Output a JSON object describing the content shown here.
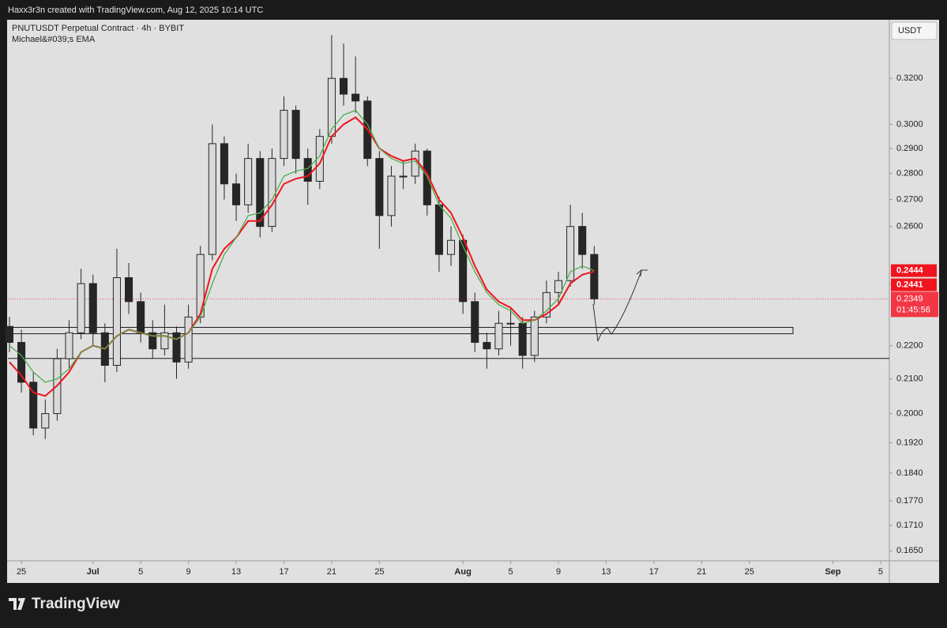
{
  "header": "Haxx3r3n created with TradingView.com, Aug 12, 2025 10:14 UTC",
  "brand": "TradingView",
  "chart_data": {
    "type": "candlestick",
    "title": "PNUTUSDT Perpetual Contract · 4h · BYBIT",
    "subtitle": "Michael&#039;s EMA",
    "y_axis_label": "USDT",
    "log_scale": true,
    "grid": false,
    "xlim": [
      23.87,
      97.73
    ],
    "xticks": [
      {
        "value": 25,
        "label": "25"
      },
      {
        "value": 31,
        "label": "Jul"
      },
      {
        "value": 35,
        "label": "5"
      },
      {
        "value": 39,
        "label": "9"
      },
      {
        "value": 43,
        "label": "13"
      },
      {
        "value": 47,
        "label": "17"
      },
      {
        "value": 51,
        "label": "21"
      },
      {
        "value": 55,
        "label": "25"
      },
      {
        "value": 62,
        "label": "Aug"
      },
      {
        "value": 66,
        "label": "5"
      },
      {
        "value": 70,
        "label": "9"
      },
      {
        "value": 74,
        "label": "13"
      },
      {
        "value": 78,
        "label": "17"
      },
      {
        "value": 82,
        "label": "21"
      },
      {
        "value": 86,
        "label": "25"
      },
      {
        "value": 93,
        "label": "Sep"
      },
      {
        "value": 97,
        "label": "5"
      }
    ],
    "ylim": [
      0.1627,
      0.3474
    ],
    "yticks": [
      {
        "value": 0.165,
        "label": "0.1650"
      },
      {
        "value": 0.171,
        "label": "0.1710"
      },
      {
        "value": 0.177,
        "label": "0.1770"
      },
      {
        "value": 0.184,
        "label": "0.1840"
      },
      {
        "value": 0.192,
        "label": "0.1920"
      },
      {
        "value": 0.2,
        "label": "0.2000"
      },
      {
        "value": 0.21,
        "label": "0.2100"
      },
      {
        "value": 0.22,
        "label": "0.2200"
      },
      {
        "value": 0.24,
        "label": "0.2400"
      },
      {
        "value": 0.26,
        "label": "0.2600"
      },
      {
        "value": 0.27,
        "label": "0.2700"
      },
      {
        "value": 0.28,
        "label": "0.2800"
      },
      {
        "value": 0.29,
        "label": "0.2900"
      },
      {
        "value": 0.3,
        "label": "0.3000"
      },
      {
        "value": 0.32,
        "label": "0.3200"
      }
    ],
    "up_color": "#d9d9d9",
    "down_color": "#262626",
    "x": [
      24,
      25,
      26,
      27,
      28,
      29,
      30,
      31,
      32,
      33,
      34,
      35,
      36,
      37,
      38,
      39,
      40,
      41,
      42,
      43,
      44,
      45,
      46,
      47,
      48,
      49,
      50,
      51,
      52,
      53,
      54,
      55,
      56,
      57,
      58,
      59,
      60,
      61,
      62,
      63,
      64,
      65,
      66,
      67,
      68,
      69,
      70,
      71,
      72,
      73
    ],
    "open": [
      0.226,
      0.221,
      0.209,
      0.196,
      0.2,
      0.216,
      0.224,
      0.24,
      0.224,
      0.214,
      0.242,
      0.234,
      0.224,
      0.219,
      0.224,
      0.215,
      0.229,
      0.25,
      0.292,
      0.276,
      0.268,
      0.286,
      0.26,
      0.286,
      0.306,
      0.286,
      0.277,
      0.295,
      0.32,
      0.313,
      0.31,
      0.286,
      0.264,
      0.279,
      0.279,
      0.289,
      0.268,
      0.25,
      0.255,
      0.234,
      0.221,
      0.219,
      0.227,
      0.227,
      0.217,
      0.229,
      0.237,
      0.241,
      0.26,
      0.25
    ],
    "high": [
      0.229,
      0.225,
      0.212,
      0.204,
      0.219,
      0.228,
      0.245,
      0.243,
      0.227,
      0.252,
      0.247,
      0.237,
      0.228,
      0.233,
      0.226,
      0.233,
      0.253,
      0.3,
      0.295,
      0.28,
      0.292,
      0.289,
      0.29,
      0.312,
      0.308,
      0.29,
      0.298,
      0.34,
      0.336,
      0.33,
      0.312,
      0.289,
      0.283,
      0.285,
      0.292,
      0.29,
      0.271,
      0.26,
      0.257,
      0.237,
      0.224,
      0.231,
      0.232,
      0.229,
      0.231,
      0.241,
      0.244,
      0.268,
      0.265,
      0.253
    ],
    "low": [
      0.218,
      0.206,
      0.194,
      0.193,
      0.198,
      0.213,
      0.222,
      0.22,
      0.209,
      0.212,
      0.23,
      0.221,
      0.216,
      0.217,
      0.21,
      0.213,
      0.227,
      0.248,
      0.27,
      0.262,
      0.265,
      0.256,
      0.258,
      0.283,
      0.28,
      0.268,
      0.274,
      0.292,
      0.308,
      0.305,
      0.283,
      0.252,
      0.26,
      0.274,
      0.276,
      0.264,
      0.244,
      0.246,
      0.23,
      0.218,
      0.213,
      0.217,
      0.22,
      0.213,
      0.215,
      0.227,
      0.233,
      0.239,
      0.245,
      0.233
    ],
    "close": [
      0.221,
      0.209,
      0.196,
      0.2,
      0.216,
      0.224,
      0.24,
      0.224,
      0.214,
      0.242,
      0.234,
      0.224,
      0.219,
      0.224,
      0.215,
      0.229,
      0.25,
      0.292,
      0.276,
      0.268,
      0.286,
      0.26,
      0.286,
      0.306,
      0.286,
      0.277,
      0.295,
      0.32,
      0.313,
      0.31,
      0.286,
      0.264,
      0.279,
      0.279,
      0.289,
      0.268,
      0.25,
      0.255,
      0.234,
      0.221,
      0.219,
      0.227,
      0.227,
      0.217,
      0.229,
      0.237,
      0.241,
      0.26,
      0.25,
      0.2349
    ],
    "series": [
      {
        "color": "#f0141e",
        "values": [
          0.215,
          0.211,
          0.206,
          0.205,
          0.208,
          0.212,
          0.218,
          0.22,
          0.219,
          0.223,
          0.225,
          0.224,
          0.223,
          0.223,
          0.222,
          0.224,
          0.23,
          0.245,
          0.252,
          0.256,
          0.262,
          0.262,
          0.268,
          0.276,
          0.278,
          0.279,
          0.284,
          0.295,
          0.3,
          0.303,
          0.298,
          0.29,
          0.287,
          0.285,
          0.286,
          0.28,
          0.27,
          0.265,
          0.256,
          0.246,
          0.238,
          0.234,
          0.232,
          0.228,
          0.228,
          0.23,
          0.233,
          0.24,
          0.243,
          0.2441
        ]
      },
      {
        "color": "#4caf50",
        "values": [
          0.22,
          0.217,
          0.212,
          0.209,
          0.21,
          0.213,
          0.218,
          0.22,
          0.219,
          0.223,
          0.225,
          0.224,
          0.223,
          0.223,
          0.222,
          0.224,
          0.229,
          0.24,
          0.25,
          0.256,
          0.264,
          0.265,
          0.27,
          0.279,
          0.281,
          0.282,
          0.287,
          0.298,
          0.304,
          0.306,
          0.3,
          0.29,
          0.286,
          0.284,
          0.285,
          0.279,
          0.268,
          0.263,
          0.253,
          0.244,
          0.237,
          0.233,
          0.231,
          0.227,
          0.228,
          0.231,
          0.235,
          0.244,
          0.246,
          0.2444
        ]
      }
    ],
    "support_zone": [
      0.2237,
      0.2257
    ],
    "support_line": 0.2161,
    "last_price": 0.2349,
    "countdown": "01:45:56",
    "price_labels": [
      {
        "value": 0.2444,
        "color": "#f0141e"
      },
      {
        "value": 0.2441,
        "color": "#f0141e"
      }
    ]
  }
}
